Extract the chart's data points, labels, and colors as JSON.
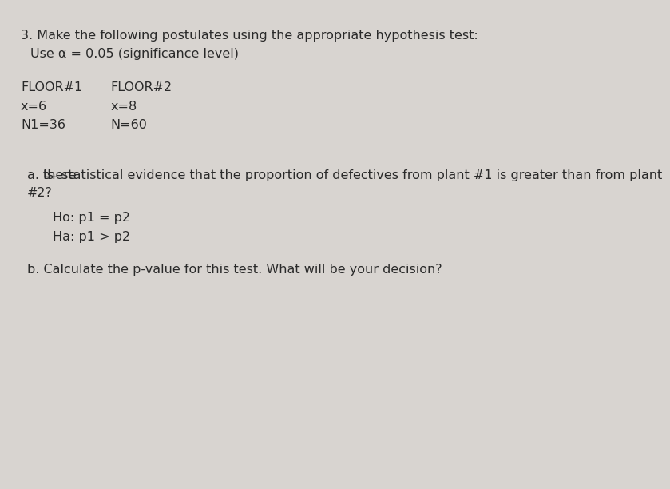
{
  "background_color": "#d8d4d0",
  "paper_color": "#e8e4e0",
  "title_line": "3. Make the following postulates using the appropriate hypothesis test:",
  "subtitle_line": "Use α = 0.05 (significance level)",
  "floor1_header": "FLOOR#1",
  "floor2_header": "FLOOR#2",
  "floor1_x": "x=6",
  "floor2_x": "x=8",
  "floor1_n": "N1=36",
  "floor2_n": "N=60",
  "question_a": "a. Is there statistical evidence that the proportion of defectives from plant #1 is greater than from plant\n#2?",
  "question_a_underline_word": "there",
  "ho": "Ho: p1 = p2",
  "ha": "Ha: p1 > p2",
  "question_b": "b. Calculate the p-value for this test. What will be your decision?",
  "font_size_main": 11.5,
  "font_size_headers": 11.5,
  "font_color": "#2a2a2a",
  "font_color_light": "#4a4a4a"
}
